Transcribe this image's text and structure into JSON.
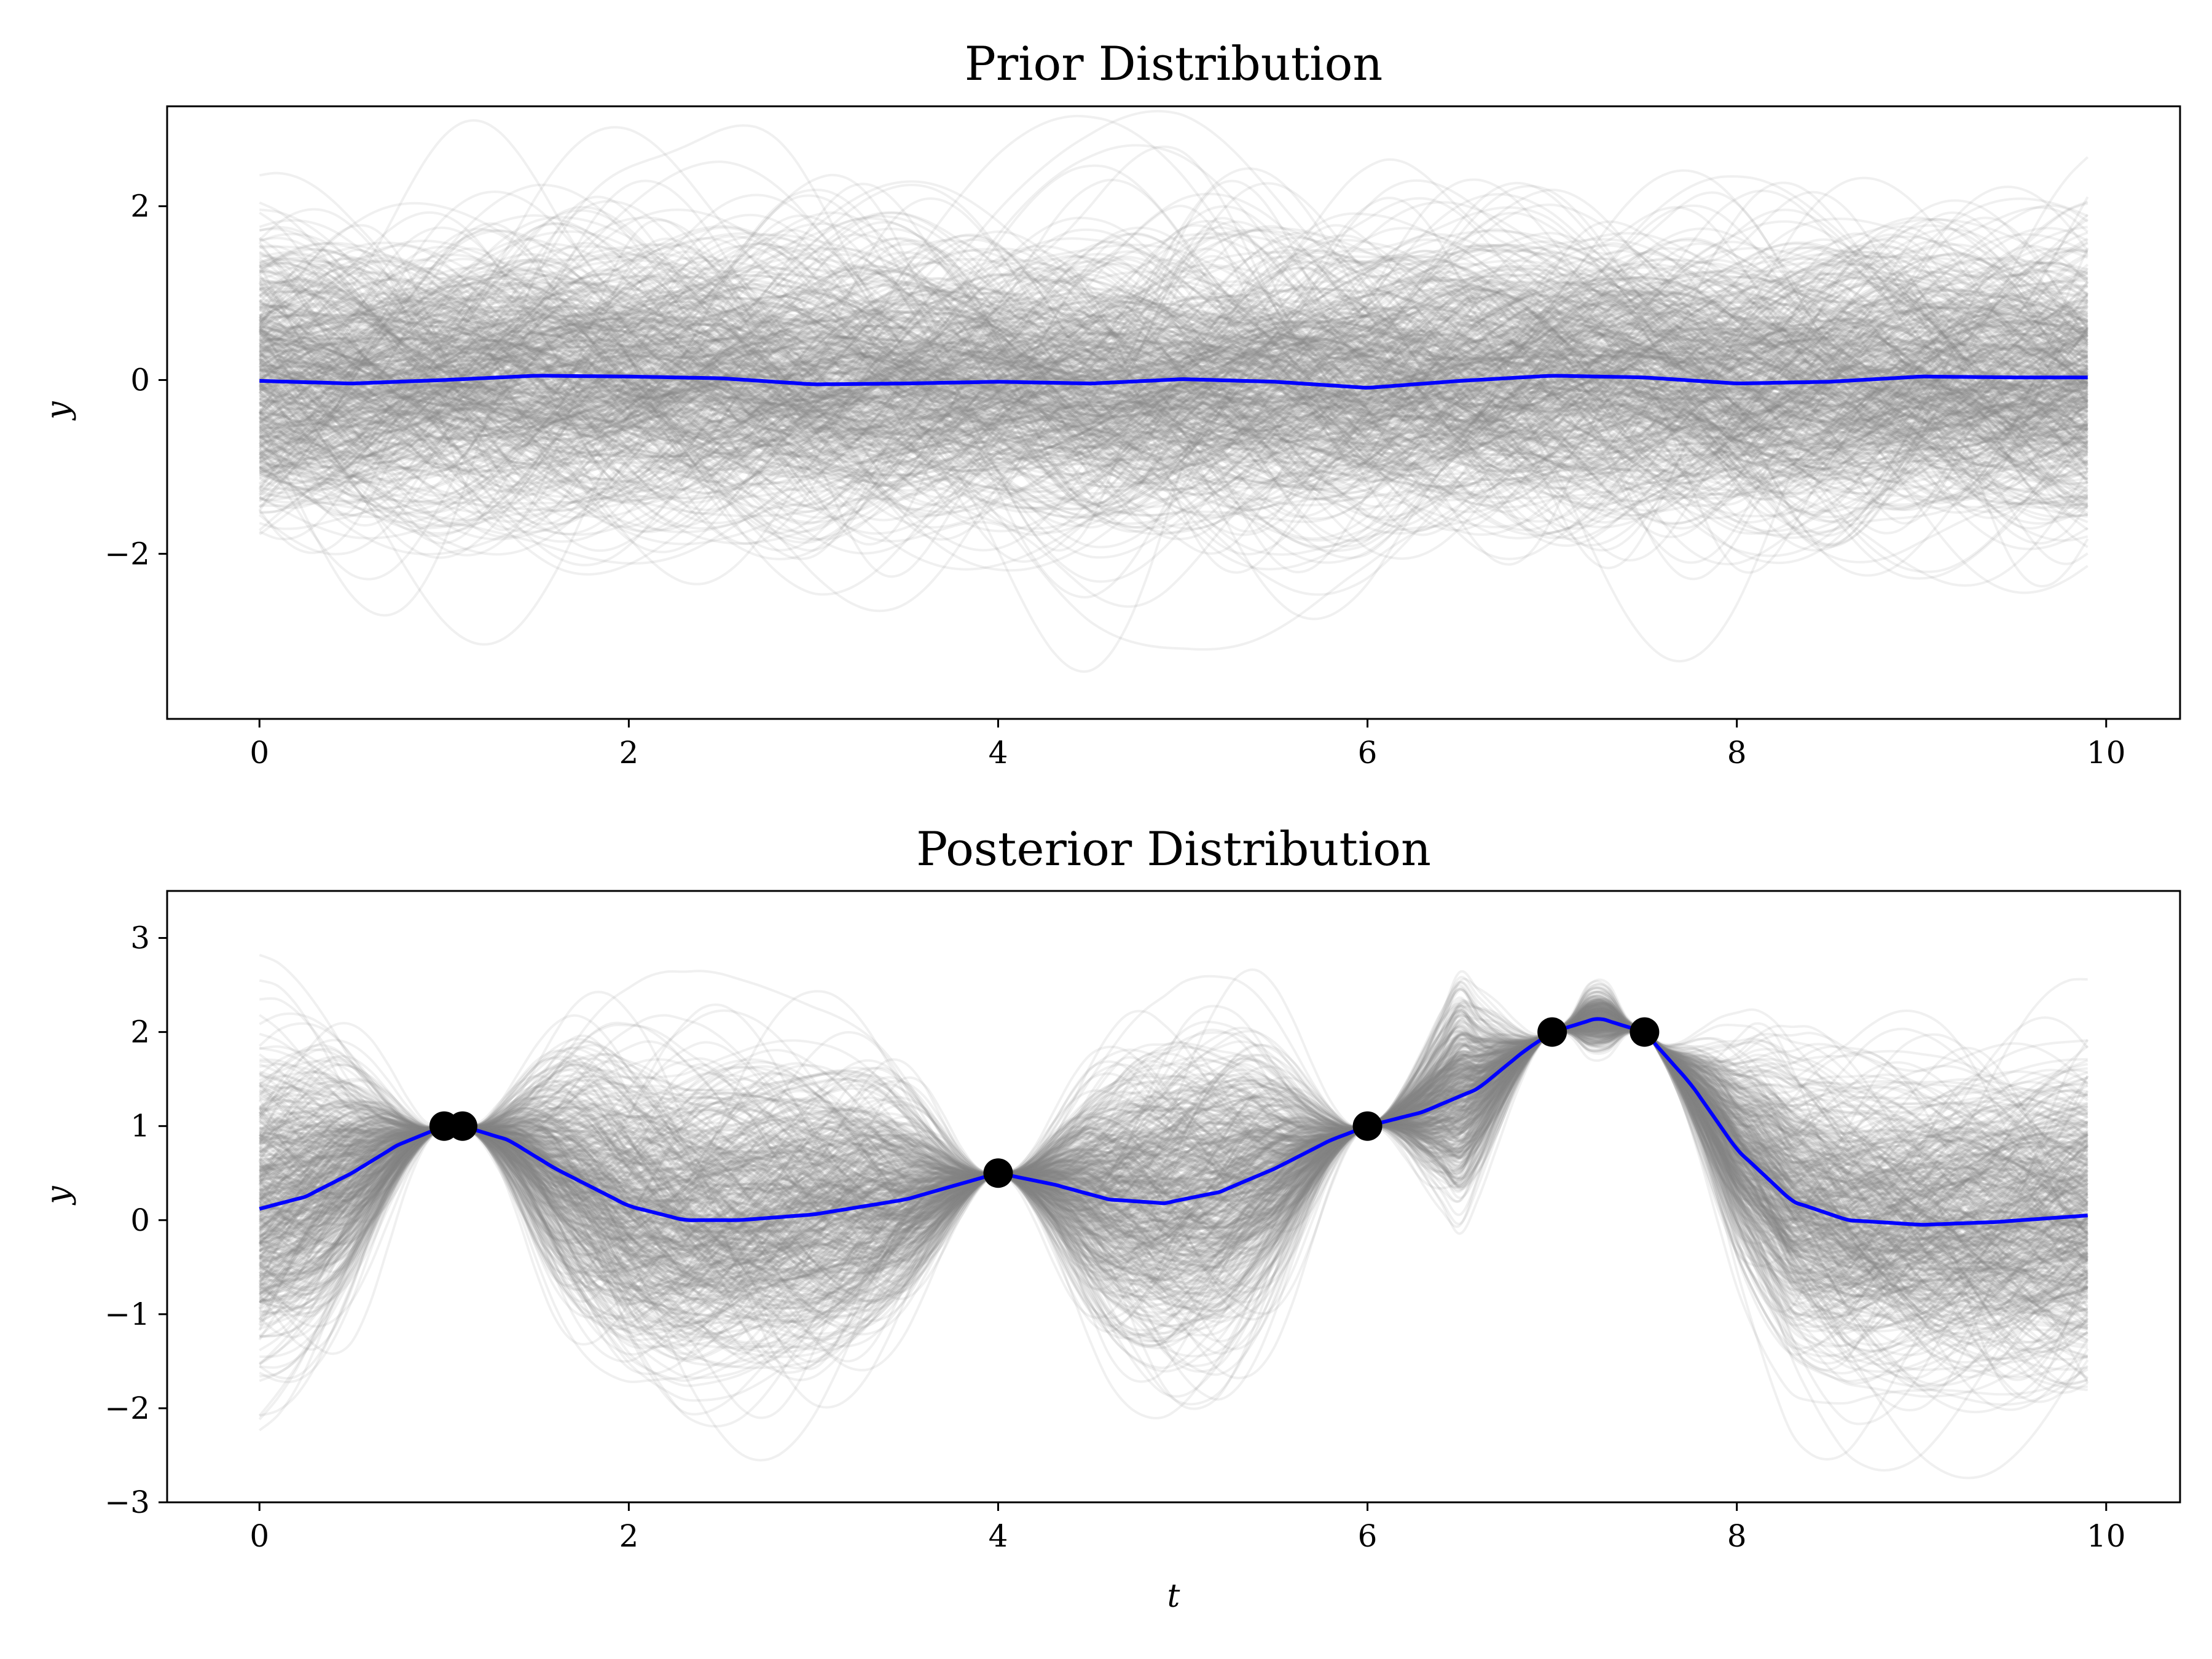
{
  "colors": {
    "sample": "#808080",
    "mean": "#0000ff",
    "observation": "#000000",
    "axes": "#000000"
  },
  "chart_data": [
    {
      "type": "line",
      "title": "Prior Distribution",
      "xlabel": "",
      "ylabel": "y",
      "xlim": [
        -0.5,
        10.4
      ],
      "ylim": [
        -3.9,
        3.15
      ],
      "xticks": [
        0,
        2,
        4,
        6,
        8,
        10
      ],
      "xtick_labels": [
        "0",
        "2",
        "4",
        "6",
        "8",
        "10"
      ],
      "yticks": [
        -2,
        0,
        2
      ],
      "ytick_labels": [
        "−2",
        "0",
        "2"
      ],
      "grid": false,
      "legend": "none",
      "series": [
        {
          "role": "mean",
          "x": [
            0,
            0.5,
            1,
            1.5,
            2,
            2.5,
            3,
            3.5,
            4,
            4.5,
            5,
            5.5,
            6,
            6.5,
            7,
            7.5,
            8,
            8.5,
            9,
            9.5,
            9.9
          ],
          "y": [
            -0.01,
            -0.04,
            0.0,
            0.05,
            0.04,
            0.02,
            -0.05,
            -0.04,
            -0.02,
            -0.04,
            0.01,
            -0.02,
            -0.09,
            -0.01,
            0.05,
            0.03,
            -0.04,
            -0.02,
            0.04,
            0.03,
            0.03
          ]
        }
      ],
      "samples": {
        "count": 500,
        "x_range": [
          0,
          9.9
        ],
        "opacity": 0.12,
        "observations_x": [],
        "observations_y": []
      }
    },
    {
      "type": "line",
      "title": "Posterior Distribution",
      "xlabel": "t",
      "ylabel": "y",
      "xlim": [
        -0.5,
        10.4
      ],
      "ylim": [
        -3,
        3.5
      ],
      "xticks": [
        0,
        2,
        4,
        6,
        8,
        10
      ],
      "xtick_labels": [
        "0",
        "2",
        "4",
        "6",
        "8",
        "10"
      ],
      "yticks": [
        -3,
        -2,
        -1,
        0,
        1,
        2,
        3
      ],
      "ytick_labels": [
        "−3",
        "−2",
        "−1",
        "0",
        "1",
        "2",
        "3"
      ],
      "grid": false,
      "legend": "none",
      "series": [
        {
          "role": "mean",
          "x": [
            0,
            0.25,
            0.5,
            0.75,
            1.0,
            1.1,
            1.35,
            1.6,
            2.0,
            2.3,
            2.6,
            3.0,
            3.5,
            4.0,
            4.3,
            4.6,
            4.9,
            5.2,
            5.5,
            5.8,
            6.0,
            6.3,
            6.6,
            6.85,
            7.0,
            7.25,
            7.5,
            7.75,
            8.0,
            8.3,
            8.6,
            9.0,
            9.4,
            9.9
          ],
          "y": [
            0.12,
            0.25,
            0.5,
            0.8,
            1.0,
            1.0,
            0.85,
            0.55,
            0.15,
            0.0,
            0.0,
            0.06,
            0.22,
            0.5,
            0.38,
            0.22,
            0.18,
            0.3,
            0.55,
            0.85,
            1.0,
            1.15,
            1.4,
            1.8,
            2.0,
            2.15,
            2.0,
            1.45,
            0.75,
            0.2,
            0.0,
            -0.05,
            -0.02,
            0.05
          ]
        }
      ],
      "samples": {
        "count": 500,
        "x_range": [
          0,
          9.9
        ],
        "opacity": 0.12,
        "observations_x": [
          1.0,
          1.1,
          4.0,
          6.0,
          7.0,
          7.5
        ],
        "observations_y": [
          1.0,
          1.0,
          0.5,
          1.0,
          2.0,
          2.0
        ]
      },
      "points": {
        "x": [
          1.0,
          1.1,
          4.0,
          6.0,
          7.0,
          7.5
        ],
        "y": [
          1.0,
          1.0,
          0.5,
          1.0,
          2.0,
          2.0
        ]
      }
    }
  ]
}
